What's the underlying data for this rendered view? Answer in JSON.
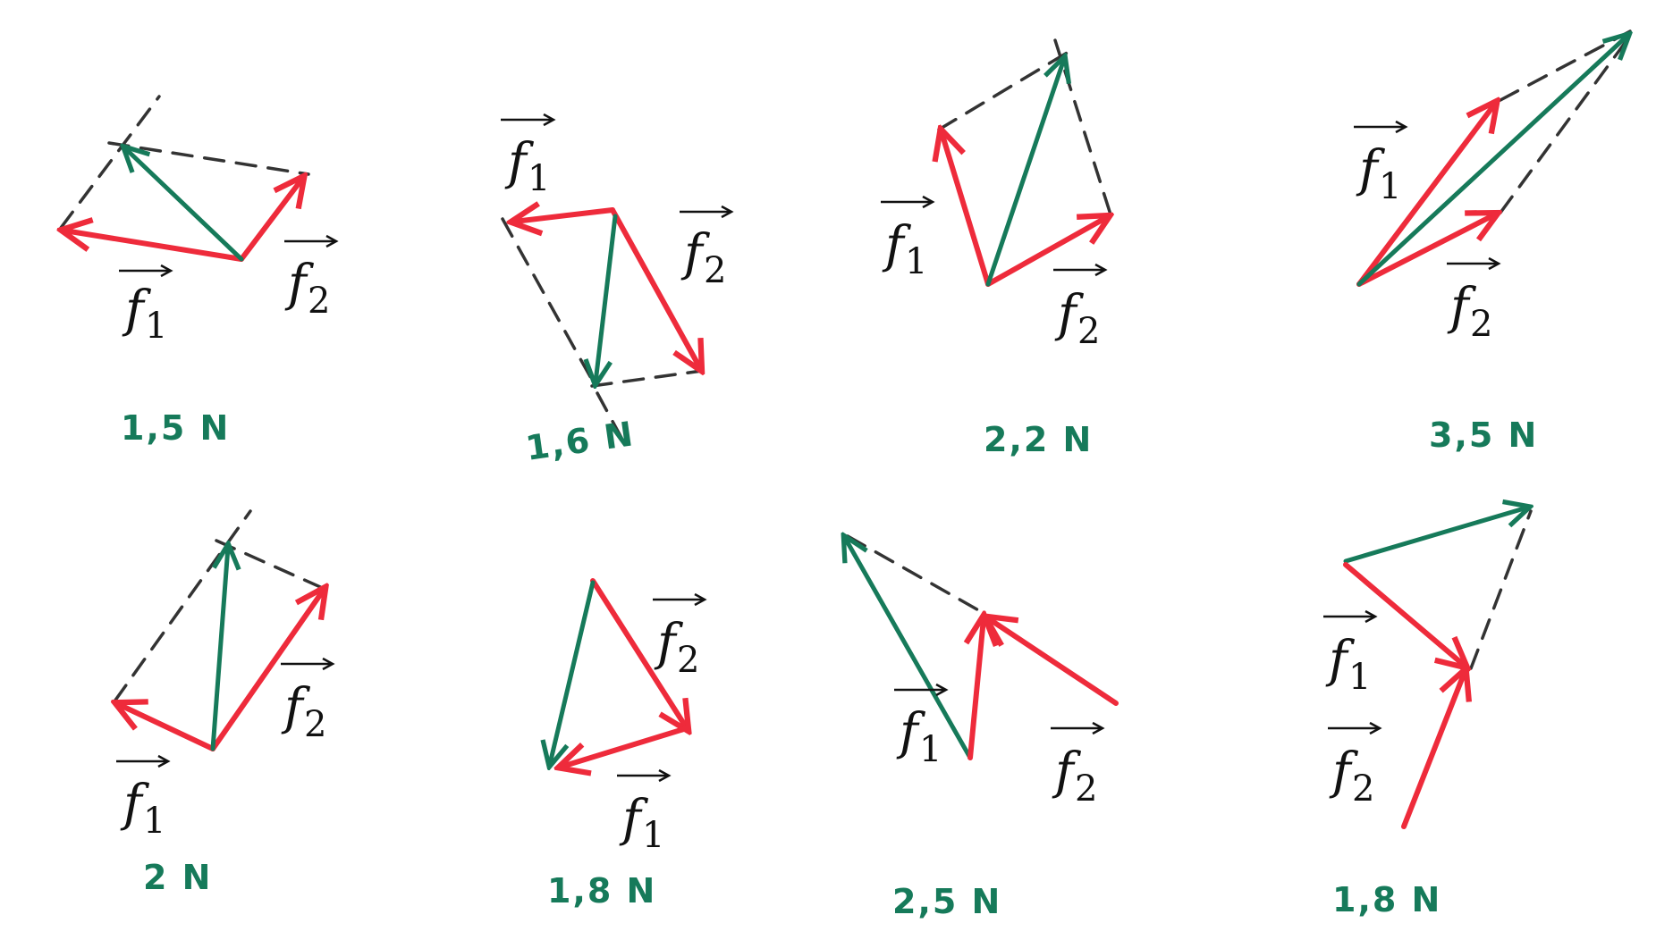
{
  "colors": {
    "red": "#ee2b3b",
    "green": "#167a5a",
    "dash": "#333333",
    "label": "#111111"
  },
  "vector_labels": {
    "f1_letter": "f",
    "f1_sub": "1",
    "f2_letter": "f",
    "f2_sub": "2"
  },
  "panels": [
    {
      "id": "p1",
      "result": "1,5 N"
    },
    {
      "id": "p2",
      "result": "1,6 N"
    },
    {
      "id": "p3",
      "result": "2,2 N"
    },
    {
      "id": "p4",
      "result": "3,5 N"
    },
    {
      "id": "p5",
      "result": "2 N"
    },
    {
      "id": "p6",
      "result": "1,8 N"
    },
    {
      "id": "p7",
      "result": "2,5 N"
    },
    {
      "id": "p8",
      "result": "1,8 N"
    }
  ]
}
